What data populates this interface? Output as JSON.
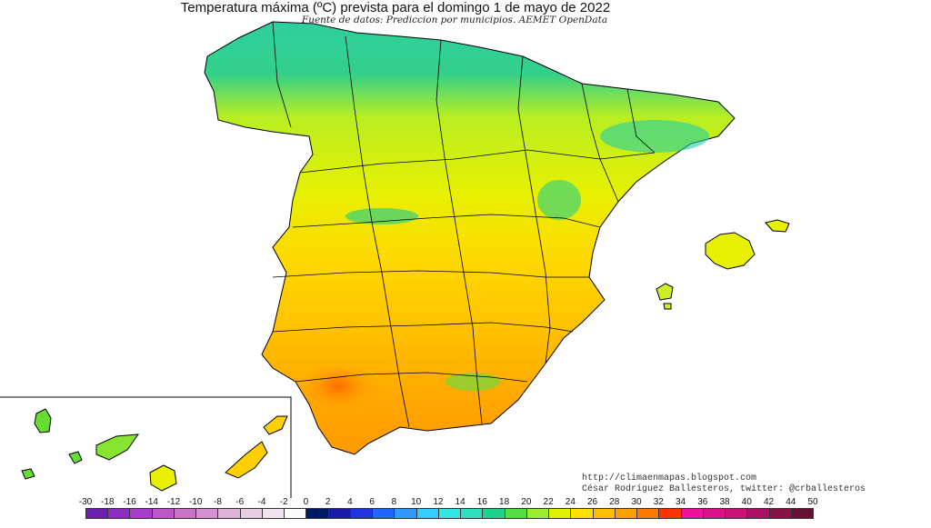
{
  "title": "Temperatura máxima (ºC) prevista para el domingo 1 de mayo de 2022",
  "subtitle": "Fuente de datos: Prediccion por municipios. AEMET OpenData",
  "credits": {
    "url": "http://climaenmapas.blogspot.com",
    "author": "César Rodríguez Ballesteros, twitter: @crballesteros"
  },
  "legend": {
    "labels": [
      "-30",
      "-18",
      "-16",
      "-14",
      "-12",
      "-10",
      "-8",
      "-6",
      "-4",
      "-2",
      "0",
      "2",
      "4",
      "6",
      "8",
      "10",
      "12",
      "14",
      "16",
      "18",
      "20",
      "22",
      "24",
      "26",
      "28",
      "30",
      "32",
      "34",
      "36",
      "38",
      "40",
      "42",
      "44",
      "50"
    ],
    "colors": [
      "#6a1fb0",
      "#8a2dc0",
      "#a63cc8",
      "#bb55c8",
      "#c874c4",
      "#d392cf",
      "#ddb0d8",
      "#e6cde2",
      "#efe3ee",
      "#fbfbfb",
      "#001a66",
      "#1a1aa8",
      "#2233e0",
      "#2266ff",
      "#3399ff",
      "#33ccff",
      "#33e6e0",
      "#2ee0c0",
      "#22d08e",
      "#55dd44",
      "#99ee33",
      "#e0f000",
      "#ffe000",
      "#ffc000",
      "#ffa000",
      "#ff7a00",
      "#ff3300",
      "#ee1199",
      "#dd1188",
      "#cc1177",
      "#aa1166",
      "#881144",
      "#661133"
    ]
  }
}
